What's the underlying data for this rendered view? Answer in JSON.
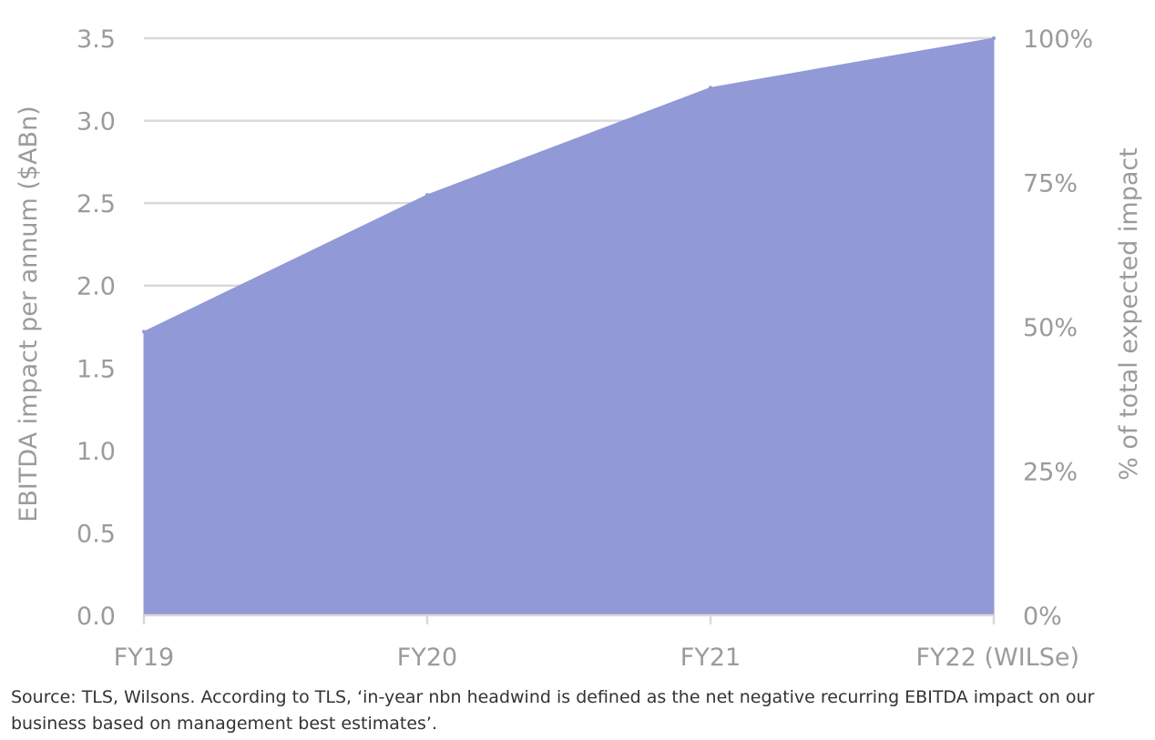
{
  "chart_data": {
    "type": "area",
    "categories": [
      "FY19",
      "FY20",
      "FY21",
      "FY22 (WILSe)"
    ],
    "series": [
      {
        "values": [
          1.72,
          2.55,
          3.2,
          3.5
        ],
        "color": "#9199d6"
      }
    ],
    "ylabel": "EBITDA impact per annum ($ABn)",
    "ylim": [
      0,
      3.5
    ],
    "yticks": [
      "0.0",
      "0.5",
      "1.0",
      "1.5",
      "2.0",
      "2.5",
      "3.0",
      "3.5"
    ],
    "y2label": "% of total expected impact",
    "y2ticks": [
      "0%",
      "25%",
      "50%",
      "75%",
      "100%"
    ],
    "grid": true,
    "gridColor": "#d9d9d9",
    "textColor": "#9b9b9b"
  },
  "source_note": "Source: TLS, Wilsons. According to TLS, ‘in-year nbn headwind is defined as the net negative recurring EBITDA impact on our business based on management best estimates’."
}
